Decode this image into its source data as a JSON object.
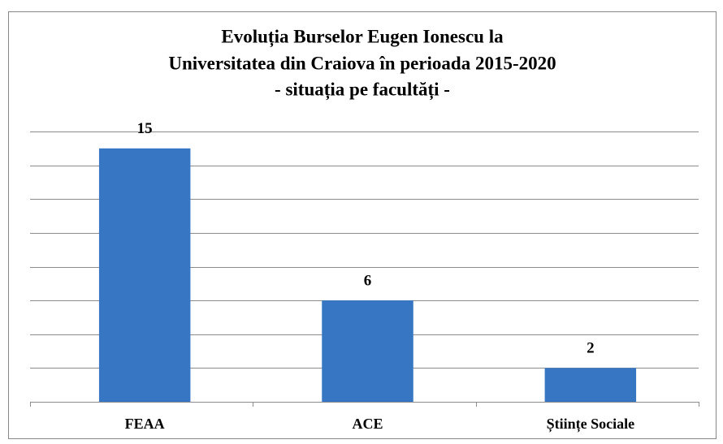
{
  "chart_data": {
    "type": "bar",
    "title": [
      "Evoluția Burselor Eugen Ionescu la",
      "Universitatea din Craiova în perioada 2015-2020",
      "- situația pe facultăți -"
    ],
    "categories": [
      "FEAA",
      "ACE",
      "Științe Sociale"
    ],
    "values": [
      15,
      6,
      2
    ],
    "color": "#3676c2",
    "ylim": [
      0,
      16
    ],
    "yticks": [
      0,
      2,
      4,
      6,
      8,
      10,
      12,
      14,
      16
    ],
    "grid": true
  }
}
